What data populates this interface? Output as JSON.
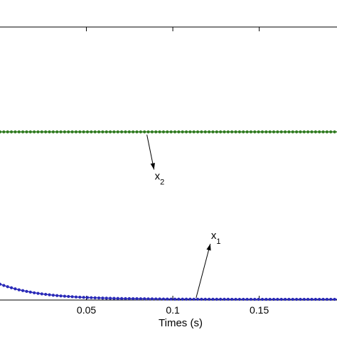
{
  "chart_data": {
    "type": "line",
    "xlabel": "Times (s)",
    "ylabel": "",
    "title": "",
    "xlim": [
      0.0,
      0.195
    ],
    "ylim": [
      0.0,
      1.35
    ],
    "xticks": [
      0.05,
      0.1,
      0.15
    ],
    "xtick_labels": [
      "0.05",
      "0.1",
      "0.15"
    ],
    "grid": false,
    "series": [
      {
        "name": "",
        "color": "#2a2ab8",
        "marker": "dot",
        "x": [
          0.0,
          0.005,
          0.01,
          0.015,
          0.02,
          0.025,
          0.03,
          0.035,
          0.04,
          0.045,
          0.05,
          0.06,
          0.07,
          0.08,
          0.09,
          0.1,
          0.12,
          0.14,
          0.16,
          0.18,
          0.195
        ],
        "y": [
          0.075,
          0.061,
          0.049,
          0.04,
          0.032,
          0.026,
          0.021,
          0.017,
          0.014,
          0.011,
          0.009,
          0.006,
          0.004,
          0.003,
          0.002,
          0.001,
          0.0005,
          0.0002,
          0.0001,
          0.0,
          0.0
        ]
      },
      {
        "name": "",
        "color": "#2f7a1f",
        "marker": "dot",
        "x": [
          0.0,
          0.195
        ],
        "y": [
          0.83,
          0.83
        ]
      }
    ],
    "annotations": [
      {
        "base": "x",
        "sub": "2",
        "target_x": 0.085,
        "target_y": 0.83
      },
      {
        "base": "x",
        "sub": "1",
        "target_x": 0.111,
        "target_y": 0.0
      }
    ]
  }
}
